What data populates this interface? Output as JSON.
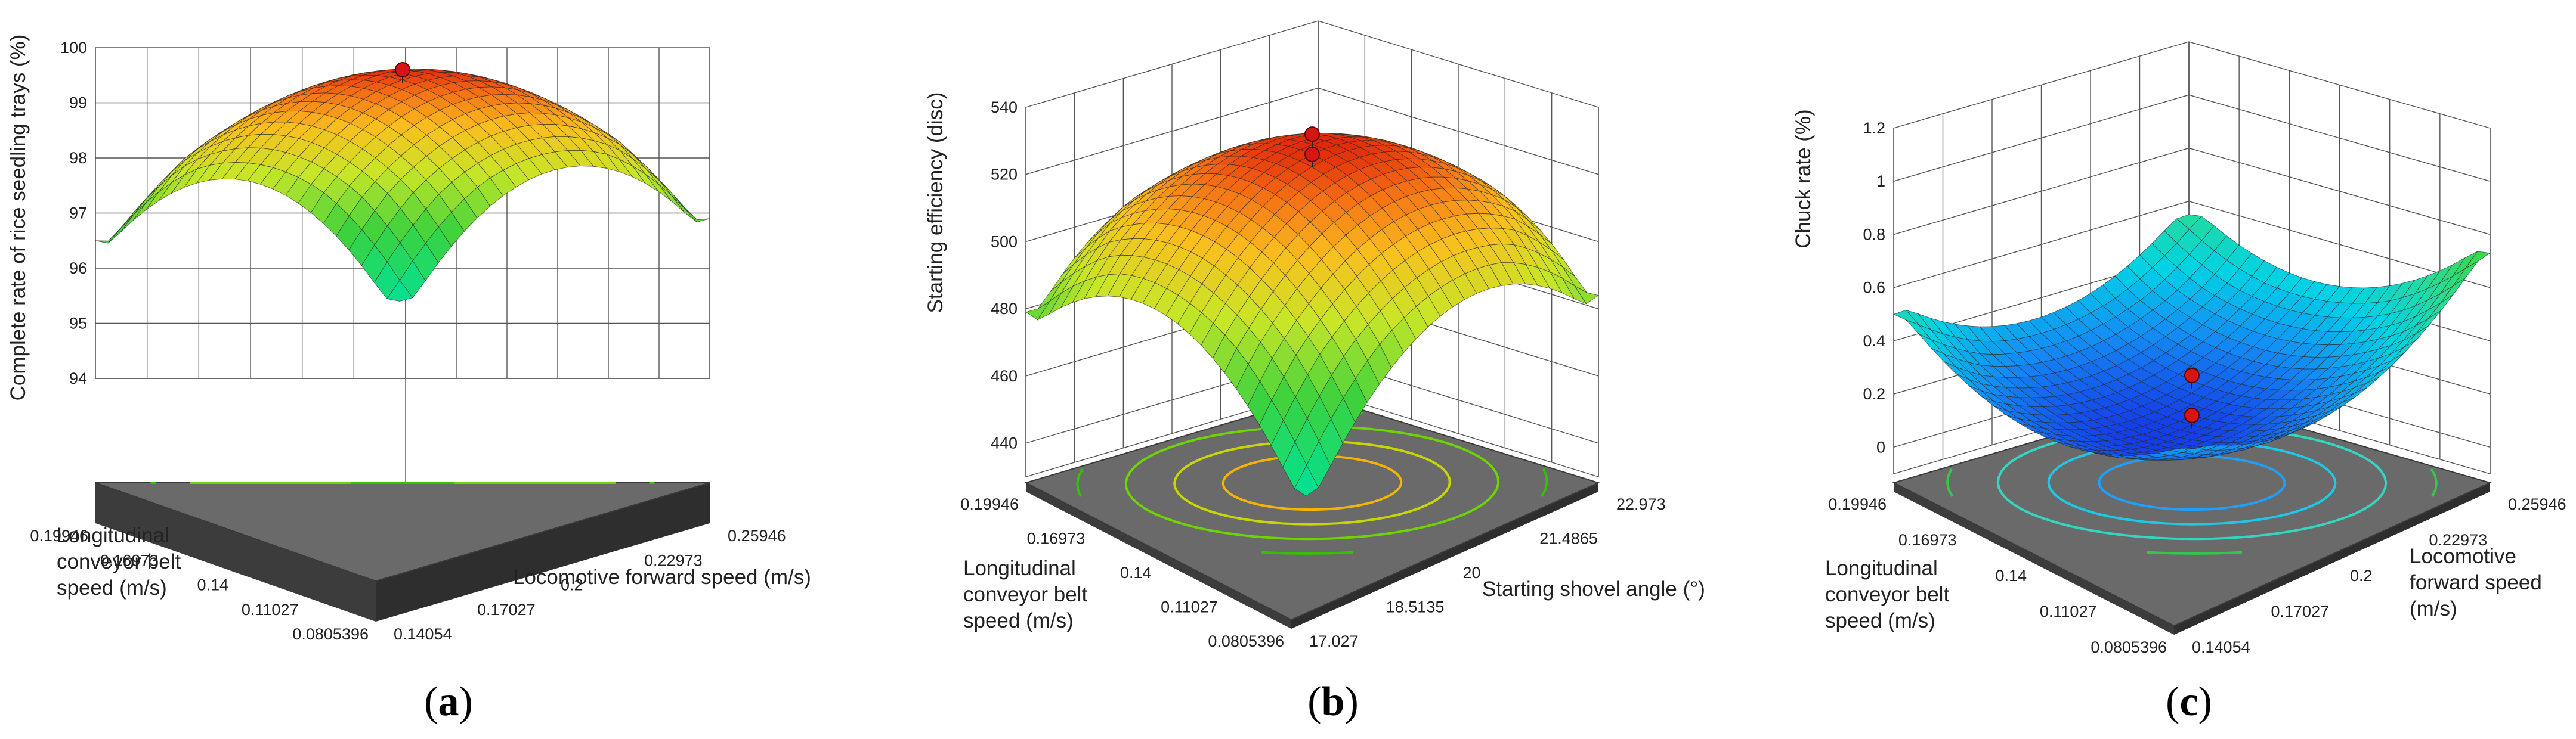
{
  "chart_data": [
    {
      "type": "surface3d",
      "panel_label": "a",
      "x_axis": {
        "label": "Locomotive forward speed (m/s)",
        "ticks": [
          "0.14054",
          "0.17027",
          "0.2",
          "0.22973",
          "0.25946"
        ],
        "range": [
          0.14054,
          0.25946
        ]
      },
      "y_axis": {
        "label": [
          "Longitudinal",
          "conveyor belt",
          "speed (m/s)"
        ],
        "ticks": [
          "0.0805396",
          "0.11027",
          "0.14",
          "0.16973",
          "0.19946"
        ],
        "range": [
          0.0805396,
          0.19946
        ]
      },
      "z_axis": {
        "label": "Complete rate of rice seedling trays (%)",
        "ticks": [
          "94",
          "95",
          "96",
          "97",
          "98",
          "99",
          "100"
        ],
        "range": [
          94,
          100
        ]
      },
      "surface": {
        "shape": "dome",
        "peak": 99.6,
        "corner_values": [
          96.4,
          96.9,
          95.4,
          96.5
        ]
      },
      "optimum_points": [
        99.6
      ],
      "contour_colors": [
        "#f39c12",
        "#f5b400",
        "#c8d600",
        "#6dd400",
        "#33c200"
      ]
    },
    {
      "type": "surface3d",
      "panel_label": "b",
      "x_axis": {
        "label": "Starting shovel angle (°)",
        "ticks": [
          "17.027",
          "18.5135",
          "20",
          "21.4865",
          "22.973"
        ],
        "range": [
          17.027,
          22.973
        ]
      },
      "y_axis": {
        "label": [
          "Longitudinal",
          "conveyor belt",
          "speed (m/s)"
        ],
        "ticks": [
          "0.0805396",
          "0.11027",
          "0.14",
          "0.16973",
          "0.19946"
        ],
        "range": [
          0.0805396,
          0.19946
        ]
      },
      "z_axis": {
        "label": "Starting efficiency (disc)",
        "ticks": [
          "440",
          "460",
          "480",
          "500",
          "520",
          "540"
        ],
        "range": [
          430,
          540
        ]
      },
      "surface": {
        "shape": "dome",
        "peak": 526,
        "corner_values": [
          478,
          484,
          450,
          479
        ]
      },
      "optimum_points": [
        532,
        526
      ],
      "contour_colors": [
        "#f5b400",
        "#c8d600",
        "#6dd400",
        "#33c200"
      ]
    },
    {
      "type": "surface3d",
      "panel_label": "c",
      "x_axis": {
        "label": [
          "Locomotive",
          "forward speed",
          "(m/s)"
        ],
        "ticks": [
          "0.14054",
          "0.17027",
          "0.2",
          "0.22973",
          "0.25946"
        ],
        "range": [
          0.14054,
          0.25946
        ]
      },
      "y_axis": {
        "label": [
          "Longitudinal",
          "conveyor belt",
          "speed (m/s)"
        ],
        "ticks": [
          "0.0805396",
          "0.11027",
          "0.14",
          "0.16973",
          "0.19946"
        ],
        "range": [
          0.0805396,
          0.19946
        ]
      },
      "z_axis": {
        "label": "Chuck rate (%)",
        "ticks": [
          "0",
          "0.2",
          "0.4",
          "0.6",
          "0.8",
          "1",
          "1.2"
        ],
        "range": [
          -0.1,
          1.2
        ]
      },
      "surface": {
        "shape": "bowl",
        "min": 0.12,
        "corner_values": [
          0.55,
          0.73,
          0.3,
          0.5
        ]
      },
      "optimum_points": [
        0.27,
        0.12
      ],
      "contour_colors": [
        "#1ea0ff",
        "#1ec8e6",
        "#33d6c0",
        "#33c84a"
      ]
    }
  ]
}
